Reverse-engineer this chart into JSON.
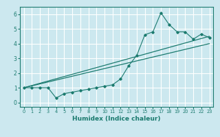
{
  "xlabel": "Humidex (Indice chaleur)",
  "ylabel": "",
  "bg_color": "#cce8ef",
  "grid_color": "#ffffff",
  "line_color": "#1a7a6e",
  "xlim": [
    -0.5,
    23.5
  ],
  "ylim": [
    -0.3,
    6.5
  ],
  "xticks": [
    0,
    1,
    2,
    3,
    4,
    5,
    6,
    7,
    8,
    9,
    10,
    11,
    12,
    13,
    14,
    15,
    16,
    17,
    18,
    19,
    20,
    21,
    22,
    23
  ],
  "yticks": [
    0,
    1,
    2,
    3,
    4,
    5,
    6
  ],
  "scatter_x": [
    0,
    1,
    2,
    3,
    4,
    5,
    6,
    7,
    8,
    9,
    10,
    11,
    12,
    13,
    14,
    15,
    16,
    17,
    18,
    19,
    20,
    21,
    22,
    23
  ],
  "scatter_y": [
    1.0,
    1.0,
    1.0,
    1.0,
    0.3,
    0.6,
    0.7,
    0.8,
    0.9,
    1.0,
    1.1,
    1.2,
    1.6,
    2.5,
    3.2,
    4.6,
    4.8,
    6.1,
    5.3,
    4.8,
    4.8,
    4.3,
    4.65,
    4.4
  ],
  "line1_x": [
    0,
    23
  ],
  "line1_y": [
    1.0,
    4.5
  ],
  "line2_x": [
    0,
    23
  ],
  "line2_y": [
    1.0,
    4.0
  ]
}
